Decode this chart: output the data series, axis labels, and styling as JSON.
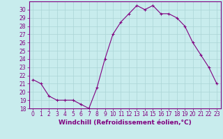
{
  "x": [
    0,
    1,
    2,
    3,
    4,
    5,
    6,
    7,
    8,
    9,
    10,
    11,
    12,
    13,
    14,
    15,
    16,
    17,
    18,
    19,
    20,
    21,
    22,
    23
  ],
  "y": [
    21.5,
    21.0,
    19.5,
    19.0,
    19.0,
    19.0,
    18.5,
    18.0,
    20.5,
    24.0,
    27.0,
    28.5,
    29.5,
    30.5,
    30.0,
    30.5,
    29.5,
    29.5,
    29.0,
    28.0,
    26.0,
    24.5,
    23.0,
    21.0
  ],
  "line_color": "#800080",
  "marker": "+",
  "marker_color": "#800080",
  "bg_color": "#c8eced",
  "grid_color": "#aad4d5",
  "xlabel": "Windchill (Refroidissement éolien,°C)",
  "xlim": [
    -0.5,
    23.5
  ],
  "ylim": [
    18,
    31
  ],
  "yticks": [
    18,
    19,
    20,
    21,
    22,
    23,
    24,
    25,
    26,
    27,
    28,
    29,
    30
  ],
  "xticks": [
    0,
    1,
    2,
    3,
    4,
    5,
    6,
    7,
    8,
    9,
    10,
    11,
    12,
    13,
    14,
    15,
    16,
    17,
    18,
    19,
    20,
    21,
    22,
    23
  ],
  "tick_color": "#800080",
  "label_color": "#800080",
  "spine_color": "#800080",
  "tick_fontsize": 5.5,
  "xlabel_fontsize": 6.5
}
